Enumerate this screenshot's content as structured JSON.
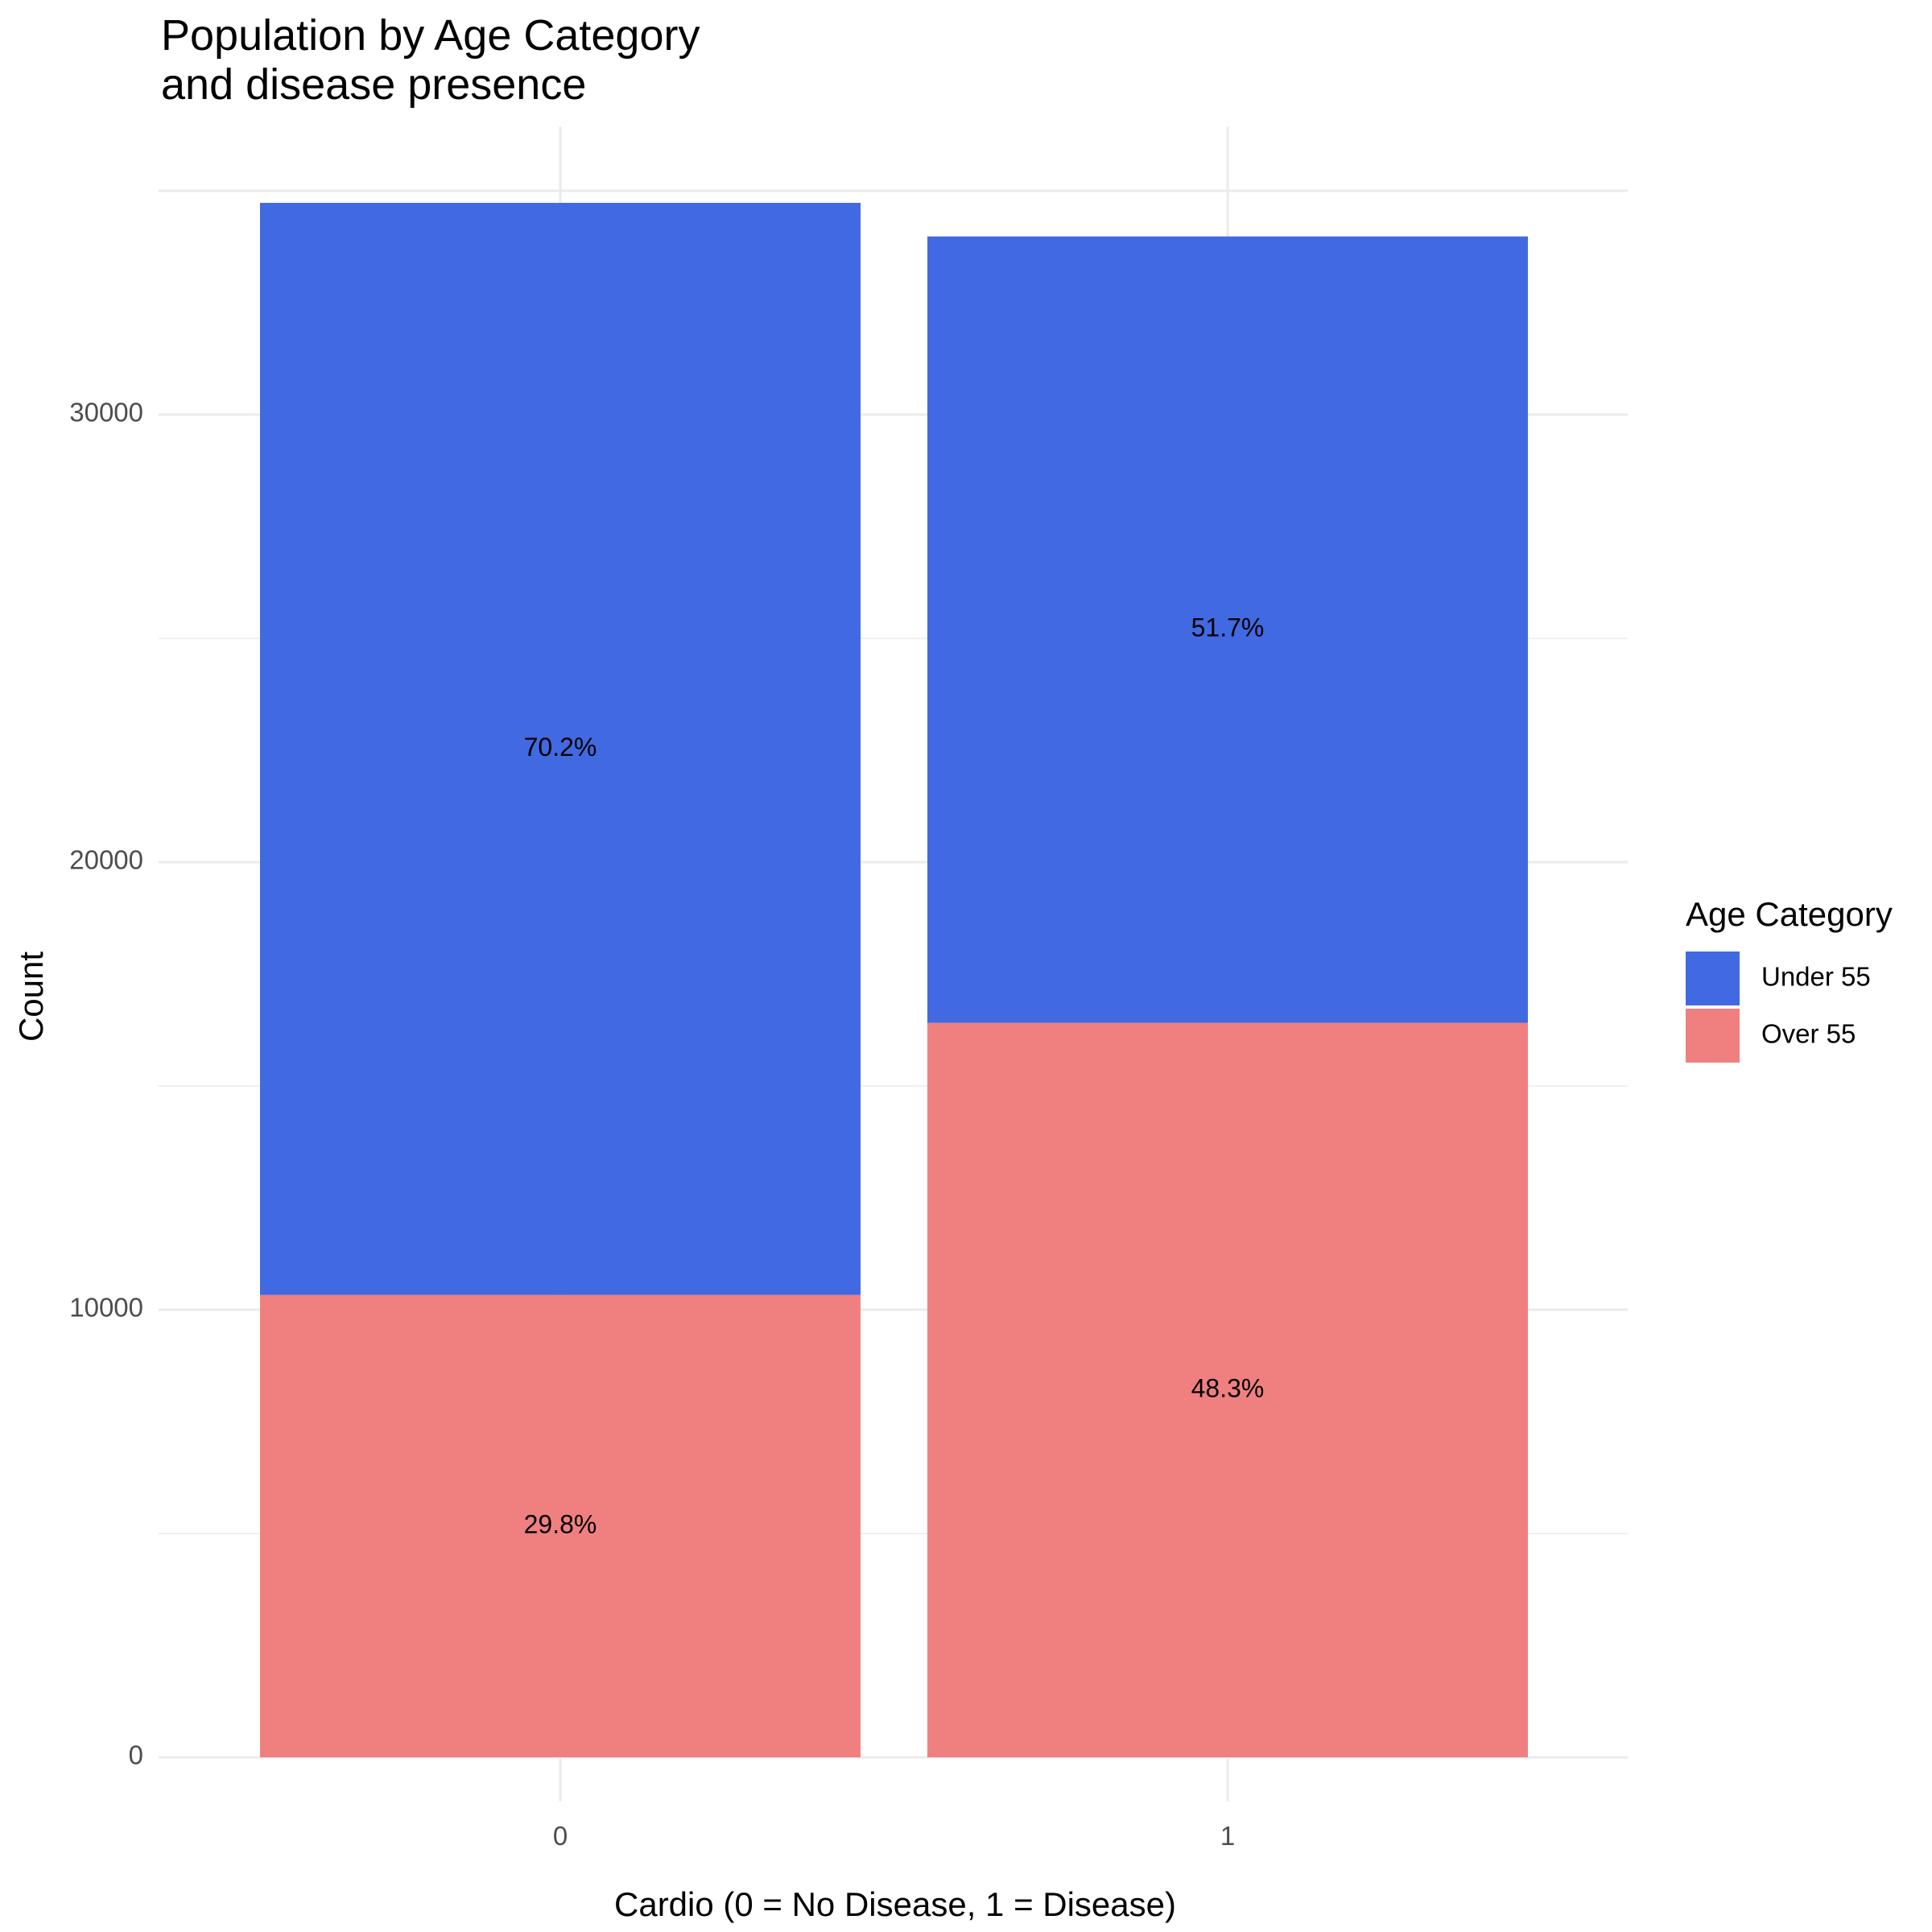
{
  "chart_data": {
    "type": "bar",
    "stacked": true,
    "title_lines": [
      "Population by Age Category",
      "and disease presence"
    ],
    "xlabel": "Cardio (0 = No Disease, 1 = Disease)",
    "ylabel": "Count",
    "categories": [
      "0",
      "1"
    ],
    "ylim": [
      0,
      35000
    ],
    "yticks": [
      0,
      10000,
      20000,
      30000
    ],
    "ytick_labels": [
      "0",
      "10000",
      "20000",
      "30000"
    ],
    "series": [
      {
        "name": "Over 55",
        "color": "#F08080",
        "values": [
          10330,
          16410
        ],
        "labels": [
          "29.8%",
          "48.3%"
        ]
      },
      {
        "name": "Under 55",
        "color": "#4169E1",
        "values": [
          24400,
          17570
        ],
        "labels": [
          "70.2%",
          "51.7%"
        ]
      }
    ],
    "legend": {
      "title": "Age Category",
      "placement": "right",
      "entries": [
        {
          "name": "Under 55",
          "color": "#4169E1"
        },
        {
          "name": "Over 55",
          "color": "#F08080"
        }
      ]
    },
    "grid": true
  }
}
